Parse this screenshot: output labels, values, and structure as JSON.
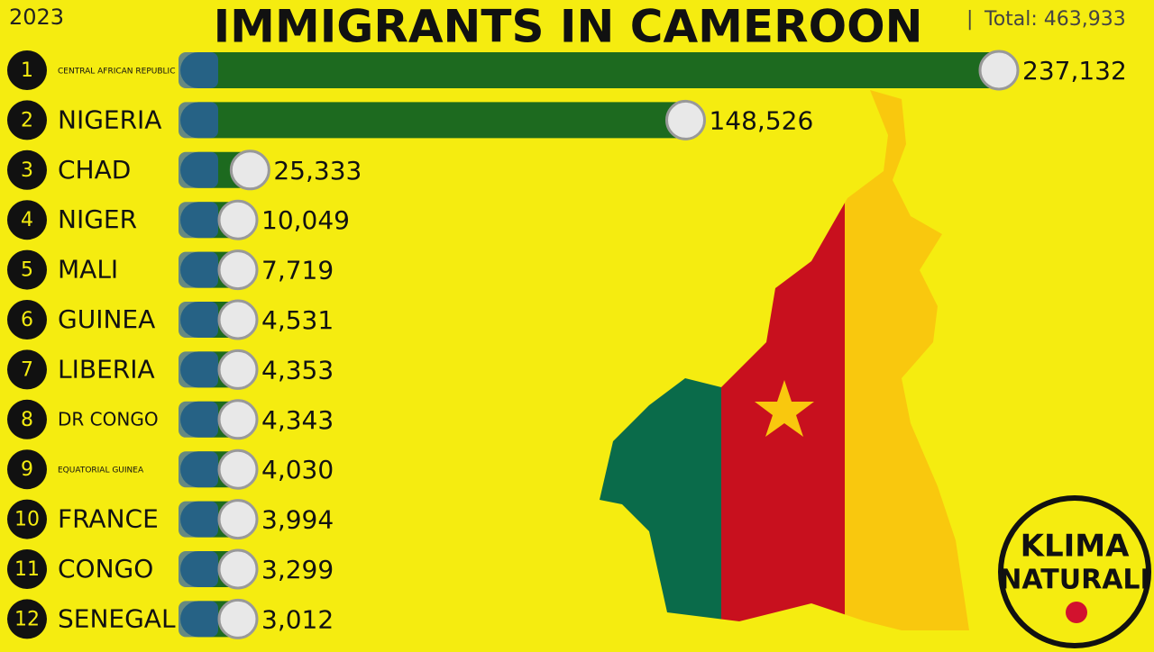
{
  "chart_data": {
    "type": "bar",
    "title": "IMMIGRANTS IN CAMEROON",
    "year": "2023",
    "total": "Total: 463,933",
    "ranks": [
      1,
      2,
      3,
      4,
      5,
      6,
      7,
      8,
      9,
      10,
      11,
      12
    ],
    "categories": [
      "CENTRAL AFRICAN REPUBLIC",
      "NIGERIA",
      "CHAD",
      "NIGER",
      "MALI",
      "GUINEA",
      "LIBERIA",
      "DR CONGO",
      "EQUATORIAL GUINEA",
      "FRANCE",
      "CONGO",
      "SENEGAL"
    ],
    "values": [
      237132,
      148526,
      25333,
      10049,
      7719,
      4531,
      4353,
      4343,
      4030,
      3994,
      3299,
      3012
    ],
    "value_labels": [
      "237,132",
      "148,526",
      "25,333",
      "10,049",
      "7,719",
      "4,531",
      "4,353",
      "4,343",
      "4,030",
      "3,994",
      "3,299",
      "3,012"
    ],
    "color": "#1d6a1f"
  },
  "logo": [
    "KLIMA",
    "NATURALI"
  ]
}
